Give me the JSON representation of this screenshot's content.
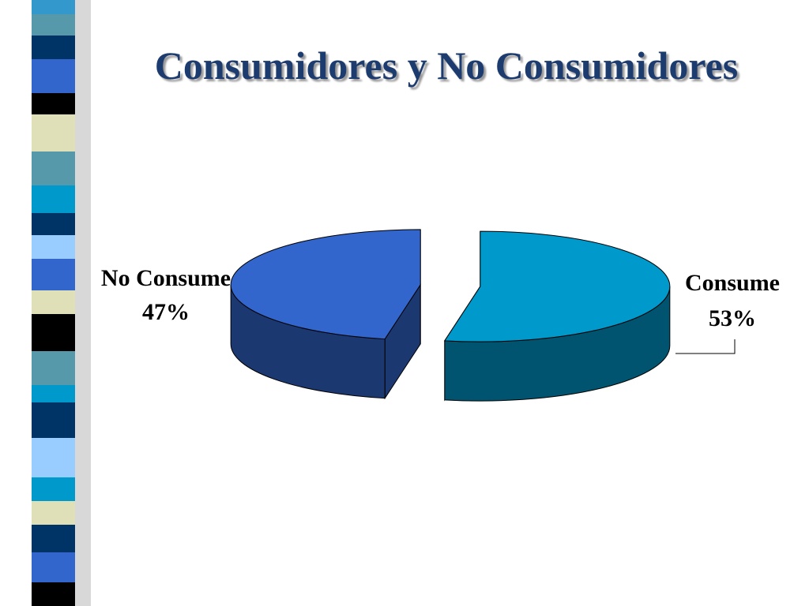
{
  "chart_data": {
    "type": "pie",
    "title": "Consumidores y No Consumidores",
    "categories": [
      "Consume",
      "No Consume"
    ],
    "values": [
      53,
      47
    ],
    "value_labels": [
      "53%",
      "47%"
    ],
    "colors": [
      "#0099cc",
      "#3366cc"
    ]
  }
}
